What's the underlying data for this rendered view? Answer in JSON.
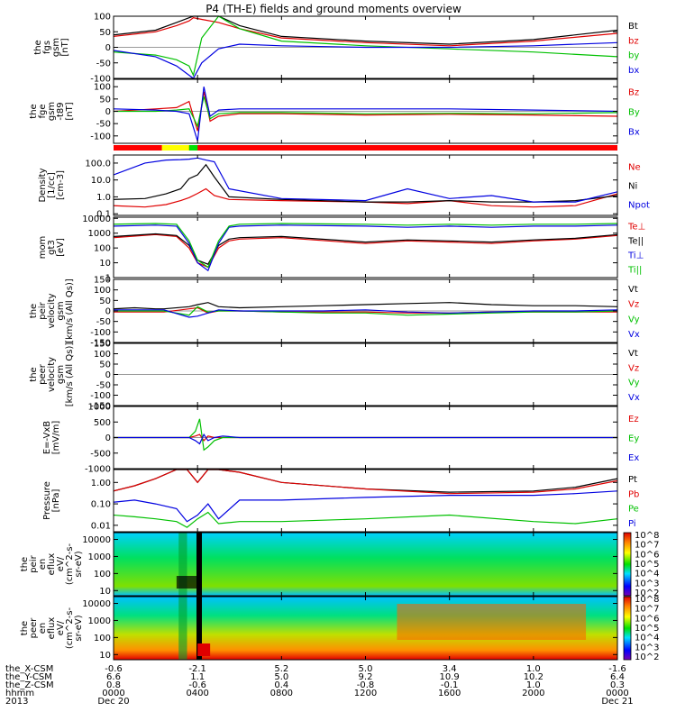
{
  "figure": {
    "title": "P4 (TH-E) fields and ground moments overview",
    "time_ticks": [
      "0000",
      "0400",
      "0800",
      "1200",
      "1600",
      "2000",
      "0000"
    ],
    "date_start": "Dec 20",
    "date_end": "Dec 21",
    "year": "2013",
    "ephemeris": [
      {
        "label": "the_X-CSM",
        "values": [
          "-0.6",
          "-2.1",
          "5.2",
          "5.0",
          "3.4",
          "1.0",
          "-1.6"
        ]
      },
      {
        "label": "the_Y-CSM",
        "values": [
          "6.6",
          "1.1",
          "5.0",
          "9.2",
          "10.9",
          "10.2",
          "6.4"
        ]
      },
      {
        "label": "the_Z-CSM",
        "values": [
          "0.8",
          "-0.6",
          "0.4",
          "-0.8",
          "-0.1",
          "1.0",
          "0.3"
        ]
      },
      {
        "label": "hhmm",
        "values": [],
        "tick_ref": "figure.time_ticks"
      }
    ],
    "colorbar_ticks": [
      "10^8",
      "10^7",
      "10^6",
      "10^5",
      "10^4",
      "10^3",
      "10^2"
    ]
  },
  "chart_data": [
    {
      "type": "line",
      "ylabel": [
        "the",
        "fgs",
        "gsm",
        "[nT]"
      ],
      "yticks": [
        "100",
        "50",
        "0",
        "-50",
        "-100"
      ],
      "ylim": [
        -100,
        100
      ],
      "legend": [
        {
          "name": "Bt",
          "color": "#000000"
        },
        {
          "name": "bz",
          "color": "#e00000"
        },
        {
          "name": "by",
          "color": "#00c000"
        },
        {
          "name": "bx",
          "color": "#0000e0"
        }
      ],
      "x": [
        0,
        2,
        3,
        3.6,
        3.8,
        4.2,
        5,
        6,
        8,
        12,
        16,
        20,
        24
      ],
      "series": [
        {
          "name": "Bt",
          "values": [
            40,
            55,
            80,
            95,
            100,
            100,
            100,
            70,
            35,
            20,
            10,
            25,
            55
          ]
        },
        {
          "name": "bz",
          "values": [
            35,
            50,
            70,
            85,
            95,
            90,
            80,
            60,
            30,
            15,
            5,
            20,
            45
          ]
        },
        {
          "name": "by",
          "values": [
            -15,
            -25,
            -40,
            -60,
            -90,
            30,
            100,
            60,
            20,
            5,
            -5,
            -15,
            -30
          ]
        },
        {
          "name": "bx",
          "values": [
            -10,
            -30,
            -60,
            -90,
            -100,
            -50,
            -5,
            10,
            5,
            0,
            0,
            5,
            15
          ]
        }
      ]
    },
    {
      "type": "line",
      "ylabel": [
        "the",
        "fge",
        "gsm",
        "-t89",
        "[nT]"
      ],
      "yticks": [
        "100",
        "50",
        "0",
        "-50",
        "-100"
      ],
      "ylim": [
        -130,
        130
      ],
      "legend": [
        {
          "name": "Bz",
          "color": "#e00000"
        },
        {
          "name": "By",
          "color": "#00c000"
        },
        {
          "name": "Bx",
          "color": "#0000e0"
        }
      ],
      "x": [
        0,
        2,
        3,
        3.6,
        4.0,
        4.3,
        4.6,
        5,
        6,
        8,
        12,
        16,
        20,
        24
      ],
      "series": [
        {
          "name": "Bz",
          "values": [
            0,
            10,
            15,
            40,
            -80,
            80,
            -40,
            -20,
            -10,
            -10,
            -15,
            -12,
            -15,
            -20
          ]
        },
        {
          "name": "By",
          "values": [
            0,
            0,
            5,
            10,
            -60,
            60,
            -30,
            -10,
            -5,
            -5,
            -10,
            -8,
            -10,
            -5
          ]
        },
        {
          "name": "Bx",
          "values": [
            10,
            5,
            0,
            -10,
            -120,
            100,
            -20,
            5,
            10,
            10,
            10,
            10,
            5,
            0
          ]
        }
      ]
    },
    {
      "type": "line",
      "ylog": true,
      "ylabel": [
        "Density",
        "[1/cc]",
        "[cm-3]"
      ],
      "yticks": [
        "100.0",
        "10.0",
        "1.0",
        "0.1"
      ],
      "ylim": [
        0.08,
        300
      ],
      "legend": [
        {
          "name": "Ne",
          "color": "#e00000"
        },
        {
          "name": "Ni",
          "color": "#000000"
        },
        {
          "name": "Npot",
          "color": "#0000e0"
        }
      ],
      "x": [
        0,
        1.5,
        2.5,
        3.2,
        3.6,
        4.0,
        4.4,
        4.8,
        5.5,
        8,
        12,
        14,
        16,
        18,
        20,
        22,
        24
      ],
      "series": [
        {
          "name": "Ne",
          "values": [
            0.3,
            0.25,
            0.35,
            0.6,
            0.9,
            1.6,
            3,
            1.2,
            0.7,
            0.6,
            0.5,
            0.4,
            0.6,
            0.3,
            0.25,
            0.3,
            1.5
          ]
        },
        {
          "name": "Ni",
          "values": [
            0.7,
            0.8,
            1.5,
            3,
            12,
            20,
            80,
            15,
            1.0,
            0.7,
            0.5,
            0.5,
            0.6,
            0.5,
            0.5,
            0.6,
            1.2
          ]
        },
        {
          "name": "Npot",
          "values": [
            20,
            100,
            150,
            160,
            170,
            200,
            150,
            120,
            3,
            0.8,
            0.6,
            3,
            0.8,
            1.2,
            0.5,
            0.5,
            2
          ]
        }
      ]
    },
    {
      "type": "line",
      "ylog": true,
      "ylabel": [
        "mom",
        "gt3",
        "[eV]"
      ],
      "yticks": [
        "10000",
        "1000",
        "100",
        "10",
        "1"
      ],
      "ylim": [
        1,
        12000
      ],
      "legend": [
        {
          "name": "Te⊥",
          "color": "#e00000"
        },
        {
          "name": "Te||",
          "color": "#000000"
        },
        {
          "name": "Ti⊥",
          "color": "#0000e0"
        },
        {
          "name": "Ti||",
          "color": "#00c000"
        }
      ],
      "x": [
        0,
        2,
        3,
        3.6,
        4.0,
        4.5,
        5,
        5.5,
        6,
        8,
        12,
        14,
        16,
        18,
        20,
        22,
        24
      ],
      "series": [
        {
          "name": "Te⊥",
          "values": [
            500,
            800,
            600,
            100,
            10,
            5,
            100,
            300,
            400,
            500,
            200,
            300,
            250,
            200,
            300,
            400,
            700
          ]
        },
        {
          "name": "Te||",
          "values": [
            600,
            900,
            700,
            150,
            15,
            8,
            150,
            400,
            500,
            600,
            250,
            350,
            300,
            250,
            350,
            450,
            800
          ]
        },
        {
          "name": "Ti⊥",
          "values": [
            3000,
            3500,
            3000,
            200,
            10,
            3,
            200,
            2500,
            3000,
            3500,
            3000,
            2500,
            3000,
            2500,
            3000,
            3000,
            3500
          ]
        },
        {
          "name": "Ti||",
          "values": [
            4000,
            4500,
            4000,
            300,
            15,
            5,
            300,
            3000,
            4000,
            4500,
            4000,
            3500,
            4000,
            3500,
            4000,
            4000,
            4500
          ]
        }
      ]
    },
    {
      "type": "line",
      "ylabel": [
        "the",
        "peir",
        "velocity",
        "gsm",
        "[km/s (All Qs)]"
      ],
      "yticks": [
        "150",
        "100",
        "50",
        "0",
        "-50",
        "-100",
        "-150"
      ],
      "ylim": [
        -150,
        150
      ],
      "legend": [
        {
          "name": "Vt",
          "color": "#000000"
        },
        {
          "name": "Vz",
          "color": "#e00000"
        },
        {
          "name": "Vy",
          "color": "#00c000"
        },
        {
          "name": "Vx",
          "color": "#0000e0"
        }
      ],
      "gap": [
        2.4,
        3.6
      ],
      "x": [
        0,
        1,
        2,
        2.4,
        3.6,
        4.0,
        4.5,
        5,
        6,
        8,
        10,
        12,
        14,
        16,
        18,
        20,
        22,
        24
      ],
      "series": [
        {
          "name": "Vt",
          "values": [
            10,
            15,
            10,
            10,
            20,
            30,
            40,
            20,
            15,
            20,
            25,
            30,
            35,
            40,
            30,
            25,
            25,
            20
          ]
        },
        {
          "name": "Vz",
          "values": [
            -5,
            -5,
            -5,
            -5,
            10,
            15,
            -10,
            0,
            0,
            -5,
            -5,
            -5,
            -10,
            -10,
            -5,
            -5,
            -5,
            -5
          ]
        },
        {
          "name": "Vy",
          "values": [
            0,
            0,
            0,
            0,
            -20,
            20,
            -5,
            0,
            0,
            -5,
            -10,
            -10,
            -20,
            -15,
            -10,
            -5,
            -5,
            0
          ]
        },
        {
          "name": "Vx",
          "values": [
            5,
            5,
            5,
            5,
            -30,
            -25,
            -10,
            5,
            0,
            0,
            0,
            5,
            -5,
            -10,
            -5,
            0,
            0,
            5
          ]
        }
      ]
    },
    {
      "type": "line",
      "ylabel": [
        "the",
        "peer",
        "velocity",
        "gsm",
        "[km/s (All Qs)]"
      ],
      "yticks": [
        "150",
        "100",
        "50",
        "0",
        "-50",
        "-100",
        "-150"
      ],
      "ylim": [
        -150,
        150
      ],
      "legend": [
        {
          "name": "Vt",
          "color": "#000000"
        },
        {
          "name": "Vz",
          "color": "#e00000"
        },
        {
          "name": "Vy",
          "color": "#00c000"
        },
        {
          "name": "Vx",
          "color": "#0000e0"
        }
      ],
      "x": [],
      "series": []
    },
    {
      "type": "line",
      "ylabel": [
        "E=-VxB",
        "[mV/m]"
      ],
      "yticks": [
        "1000",
        "500",
        "0",
        "-500",
        "-1000"
      ],
      "ylim": [
        -1000,
        1000
      ],
      "legend": [
        {
          "name": "Ez",
          "color": "#e00000"
        },
        {
          "name": "Ey",
          "color": "#00c000"
        },
        {
          "name": "Ex",
          "color": "#0000e0"
        }
      ],
      "x": [
        0,
        3.6,
        3.9,
        4.1,
        4.3,
        4.5,
        4.8,
        5.2,
        6,
        24
      ],
      "series": [
        {
          "name": "Ez",
          "values": [
            0,
            0,
            50,
            100,
            -100,
            50,
            0,
            0,
            0,
            0
          ]
        },
        {
          "name": "Ey",
          "values": [
            0,
            0,
            200,
            600,
            -400,
            -300,
            -100,
            0,
            0,
            0
          ]
        },
        {
          "name": "Ex",
          "values": [
            0,
            0,
            -100,
            -200,
            100,
            -100,
            0,
            50,
            0,
            0
          ]
        }
      ]
    },
    {
      "type": "line",
      "ylog": true,
      "ylabel": [
        "Pressure",
        "[nPa]"
      ],
      "yticks": [
        "1.00",
        "0.10",
        "0.01"
      ],
      "ylim": [
        0.005,
        4
      ],
      "legend": [
        {
          "name": "Pt",
          "color": "#000000"
        },
        {
          "name": "Pb",
          "color": "#e00000"
        },
        {
          "name": "Pe",
          "color": "#00c000"
        },
        {
          "name": "Pi",
          "color": "#0000e0"
        }
      ],
      "x": [
        0,
        1,
        2,
        3,
        3.5,
        4.0,
        4.5,
        5,
        6,
        8,
        12,
        16,
        20,
        22,
        24
      ],
      "series": [
        {
          "name": "Pt",
          "values": [
            0.4,
            0.7,
            1.5,
            4,
            4,
            1.0,
            4,
            4,
            3,
            1.0,
            0.5,
            0.35,
            0.4,
            0.6,
            1.5
          ]
        },
        {
          "name": "Pb",
          "values": [
            0.4,
            0.7,
            1.5,
            4,
            4,
            1.0,
            4,
            4,
            3,
            1.0,
            0.5,
            0.3,
            0.35,
            0.5,
            1.2
          ]
        },
        {
          "name": "Pe",
          "values": [
            0.03,
            0.025,
            0.02,
            0.015,
            0.008,
            0.02,
            0.04,
            0.012,
            0.015,
            0.015,
            0.02,
            0.03,
            0.015,
            0.012,
            0.02
          ]
        },
        {
          "name": "Pi",
          "values": [
            0.12,
            0.15,
            0.1,
            0.06,
            0.015,
            0.03,
            0.1,
            0.02,
            0.15,
            0.15,
            0.2,
            0.25,
            0.25,
            0.3,
            0.4
          ]
        }
      ]
    },
    {
      "type": "heatmap",
      "ylog": true,
      "ylabel": [
        "the",
        "peir",
        "en",
        "eflux",
        "eV/",
        "(cm^2-s-",
        "sr-eV)"
      ],
      "yticks": [
        "10000",
        "1000",
        "100",
        "10"
      ],
      "ylim": [
        5,
        25000
      ]
    },
    {
      "type": "heatmap",
      "ylog": true,
      "ylabel": [
        "the",
        "peer",
        "en",
        "eflux",
        "eV/",
        "(cm^2-s-",
        "sr-eV)"
      ],
      "yticks": [
        "10000",
        "1000",
        "100",
        "10"
      ],
      "ylim": [
        5,
        25000
      ]
    }
  ]
}
